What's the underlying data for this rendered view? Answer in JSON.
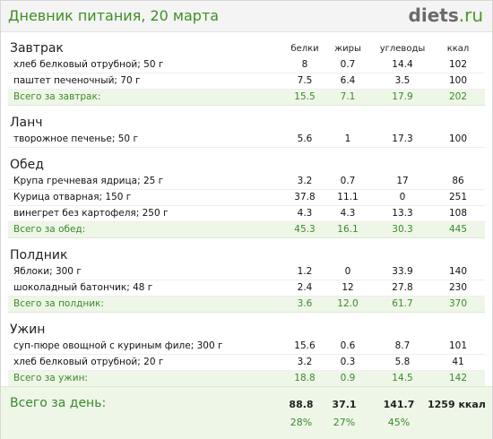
{
  "header": {
    "title": "Дневник питания, 20 марта",
    "logo_main": "diets",
    "logo_tld": ".ru"
  },
  "columns": [
    "белки",
    "жиры",
    "углеводы",
    "ккал"
  ],
  "meals": [
    {
      "title": "Завтрак",
      "items": [
        {
          "name": "хлеб белковый отрубной; 50 г",
          "protein": "8",
          "fat": "0.7",
          "carbs": "14.4",
          "kcal": "102"
        },
        {
          "name": "паштет печеночный; 70 г",
          "protein": "7.5",
          "fat": "6.4",
          "carbs": "3.5",
          "kcal": "100"
        }
      ],
      "total": {
        "name": "Всего за завтрак:",
        "protein": "15.5",
        "fat": "7.1",
        "carbs": "17.9",
        "kcal": "202"
      }
    },
    {
      "title": "Ланч",
      "items": [
        {
          "name": "творожное печенье; 50 г",
          "protein": "5.6",
          "fat": "1",
          "carbs": "17.3",
          "kcal": "100"
        }
      ]
    },
    {
      "title": "Обед",
      "items": [
        {
          "name": "Крупа гречневая ядрица; 25 г",
          "protein": "3.2",
          "fat": "0.7",
          "carbs": "17",
          "kcal": "86"
        },
        {
          "name": "Курица отварная; 150 г",
          "protein": "37.8",
          "fat": "11.1",
          "carbs": "0",
          "kcal": "251"
        },
        {
          "name": "винегрет без картофеля; 250 г",
          "protein": "4.3",
          "fat": "4.3",
          "carbs": "13.3",
          "kcal": "108"
        }
      ],
      "total": {
        "name": "Всего за обед:",
        "protein": "45.3",
        "fat": "16.1",
        "carbs": "30.3",
        "kcal": "445"
      }
    },
    {
      "title": "Полдник",
      "items": [
        {
          "name": "Яблоки; 300 г",
          "protein": "1.2",
          "fat": "0",
          "carbs": "33.9",
          "kcal": "140"
        },
        {
          "name": "шоколадный батончик; 48 г",
          "protein": "2.4",
          "fat": "12",
          "carbs": "27.8",
          "kcal": "230"
        }
      ],
      "total": {
        "name": "Всего за полдник:",
        "protein": "3.6",
        "fat": "12.0",
        "carbs": "61.7",
        "kcal": "370"
      }
    },
    {
      "title": "Ужин",
      "items": [
        {
          "name": "суп-пюре овощной с куриным филе; 300 г",
          "protein": "15.6",
          "fat": "0.6",
          "carbs": "8.7",
          "kcal": "101"
        },
        {
          "name": "хлеб белковый отрубной; 20 г",
          "protein": "3.2",
          "fat": "0.3",
          "carbs": "5.8",
          "kcal": "41"
        }
      ],
      "total": {
        "name": "Всего за ужин:",
        "protein": "18.8",
        "fat": "0.9",
        "carbs": "14.5",
        "kcal": "142"
      }
    }
  ],
  "day_total": {
    "label": "Всего за день:",
    "protein": "88.8",
    "fat": "37.1",
    "carbs": "141.7",
    "kcal": "1259 ккал",
    "protein_pct": "28%",
    "fat_pct": "27%",
    "carbs_pct": "45%"
  },
  "colors": {
    "accent_green": "#3f8f24",
    "total_row_bg": "#eef6e8"
  }
}
